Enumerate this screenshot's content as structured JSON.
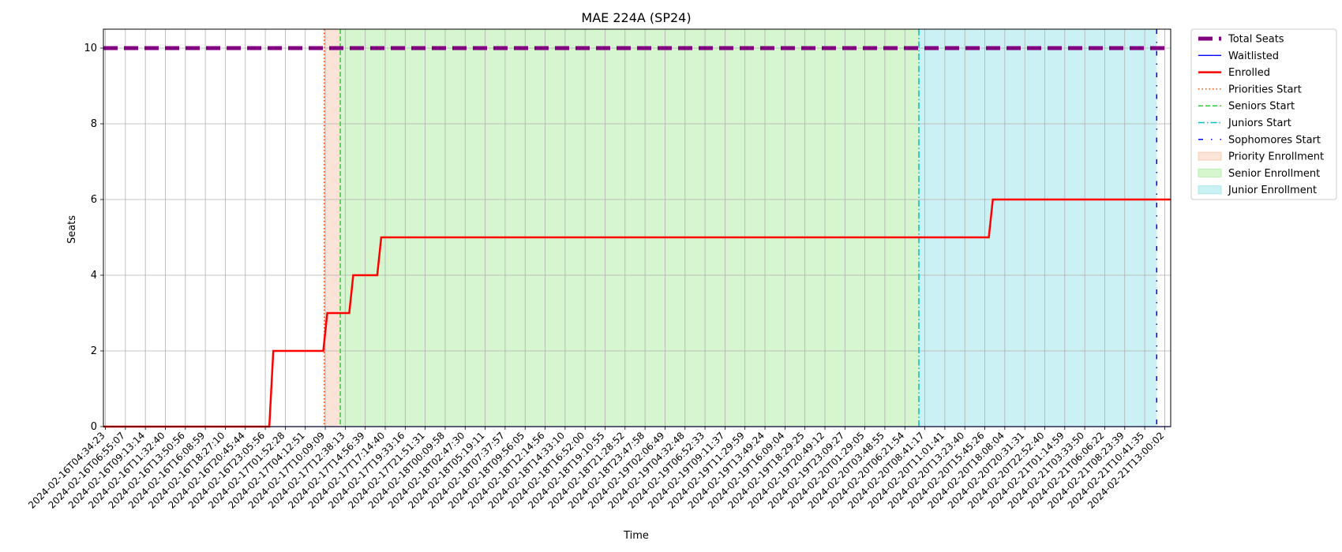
{
  "chart_data": {
    "type": "line",
    "title": "MAE 224A (SP24)",
    "xlabel": "Time",
    "ylabel": "Seats",
    "ylim": [
      0,
      10.5
    ],
    "yticks": [
      0,
      2,
      4,
      6,
      8,
      10
    ],
    "grid": true,
    "legend_position": "outside-top-right",
    "x_ticks": [
      "2024-02-16T04:34:23",
      "2024-02-16T06:55:07",
      "2024-02-16T09:13:14",
      "2024-02-16T11:32:40",
      "2024-02-16T13:50:56",
      "2024-02-16T16:08:59",
      "2024-02-16T18:27:10",
      "2024-02-16T20:45:44",
      "2024-02-16T23:05:56",
      "2024-02-17T01:52:28",
      "2024-02-17T04:12:51",
      "2024-02-17T10:09:09",
      "2024-02-17T12:38:13",
      "2024-02-17T14:56:39",
      "2024-02-17T17:14:40",
      "2024-02-17T19:33:16",
      "2024-02-17T21:51:31",
      "2024-02-18T00:09:58",
      "2024-02-18T02:47:30",
      "2024-02-18T05:19:11",
      "2024-02-18T07:37:57",
      "2024-02-18T09:56:05",
      "2024-02-18T12:14:56",
      "2024-02-18T14:33:10",
      "2024-02-18T16:52:00",
      "2024-02-18T19:10:55",
      "2024-02-18T21:28:52",
      "2024-02-18T23:47:58",
      "2024-02-19T02:06:49",
      "2024-02-19T04:32:48",
      "2024-02-19T06:52:33",
      "2024-02-19T09:11:37",
      "2024-02-19T11:29:59",
      "2024-02-19T13:49:24",
      "2024-02-19T16:09:04",
      "2024-02-19T18:29:25",
      "2024-02-19T20:49:12",
      "2024-02-19T23:09:27",
      "2024-02-20T01:29:05",
      "2024-02-20T03:48:55",
      "2024-02-20T06:21:54",
      "2024-02-20T08:41:17",
      "2024-02-20T11:01:41",
      "2024-02-20T13:23:40",
      "2024-02-20T15:45:26",
      "2024-02-20T18:08:04",
      "2024-02-20T20:31:31",
      "2024-02-20T22:52:40",
      "2024-02-21T01:14:59",
      "2024-02-21T03:33:50",
      "2024-02-21T06:06:22",
      "2024-02-21T08:23:39",
      "2024-02-21T10:41:35",
      "2024-02-21T13:00:02"
    ],
    "x_range_index": [
      -0.1,
      53.3
    ],
    "series": [
      {
        "name": "Total Seats",
        "color": "#800080",
        "style": "dashed-thick",
        "x": [
          -0.1,
          53.3
        ],
        "y": [
          10,
          10
        ]
      },
      {
        "name": "Waitlisted",
        "color": "#0000ff",
        "style": "solid-thin",
        "x": [
          -0.1,
          53.3
        ],
        "y": [
          0,
          0
        ]
      },
      {
        "name": "Enrolled",
        "color": "#ff0000",
        "style": "solid-thick",
        "x": [
          -0.1,
          8.2,
          8.4,
          10.9,
          11.1,
          12.2,
          12.4,
          13.6,
          13.8,
          44.2,
          44.4,
          53.3
        ],
        "y": [
          0,
          0,
          2,
          2,
          3,
          3,
          4,
          4,
          5,
          5,
          6,
          6
        ]
      }
    ],
    "events": [
      {
        "name": "Priorities Start",
        "color": "#ff4500",
        "style": "dotted",
        "x": 10.95
      },
      {
        "name": "Seniors Start",
        "color": "#32cd32",
        "style": "dashed",
        "x": 11.75
      },
      {
        "name": "Juniors Start",
        "color": "#00bfbf",
        "style": "dashdot",
        "x": 40.7
      },
      {
        "name": "Sophomores Start",
        "color": "#0000ff",
        "style": "loose-dashdot",
        "x": 52.6
      }
    ],
    "spans": [
      {
        "name": "Priority Enrollment",
        "color": "#f4b89a",
        "start": 10.95,
        "end": 11.75
      },
      {
        "name": "Senior Enrollment",
        "color": "#98e88a",
        "start": 11.75,
        "end": 40.7
      },
      {
        "name": "Junior Enrollment",
        "color": "#80dde3",
        "start": 40.7,
        "end": 52.6
      }
    ],
    "legend": [
      "Total Seats",
      "Waitlisted",
      "Enrolled",
      "Priorities Start",
      "Seniors Start",
      "Juniors Start",
      "Sophomores Start",
      "Priority Enrollment",
      "Senior Enrollment",
      "Junior Enrollment"
    ]
  }
}
